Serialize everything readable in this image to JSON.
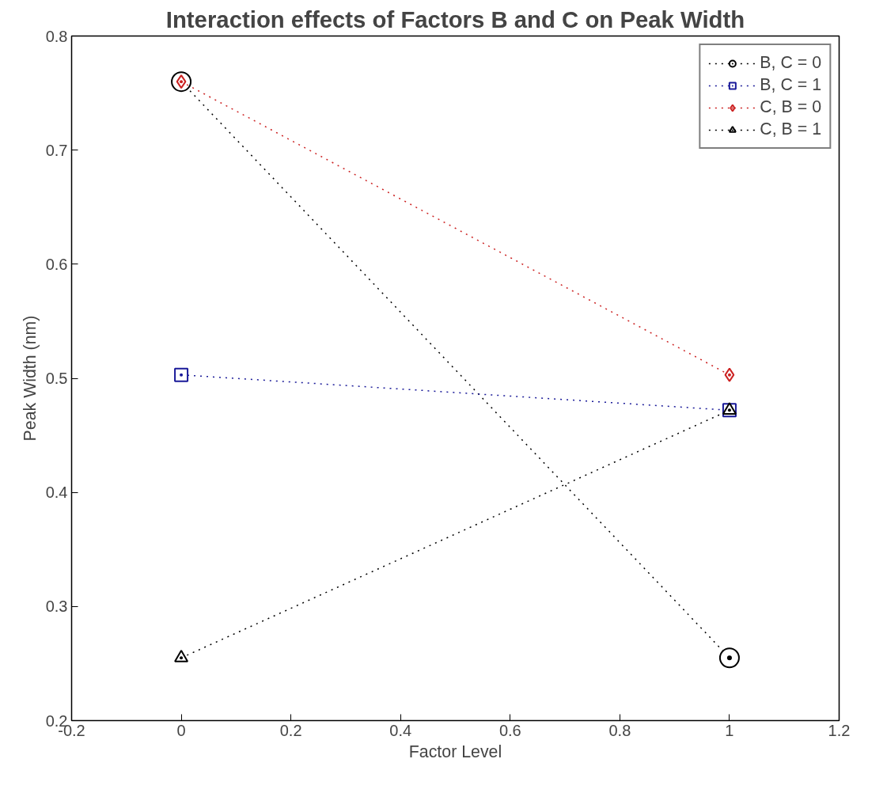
{
  "chart_data": {
    "type": "line",
    "title": "Interaction effects of Factors B and C on Peak Width",
    "xlabel": "Factor Level",
    "ylabel": "Peak Width (nm)",
    "x": [
      0,
      1
    ],
    "series": [
      {
        "name": "B, C = 0",
        "color": "#000000",
        "marker": "circle",
        "values": [
          0.76,
          0.255
        ]
      },
      {
        "name": "B, C = 1",
        "color": "#1a1a99",
        "marker": "square",
        "values": [
          0.503,
          0.472
        ]
      },
      {
        "name": "C, B = 0",
        "color": "#cc2222",
        "marker": "diamond",
        "values": [
          0.76,
          0.503
        ]
      },
      {
        "name": "C, B = 1",
        "color": "#000000",
        "marker": "triangle",
        "values": [
          0.255,
          0.472
        ]
      }
    ],
    "xlim": [
      -0.2,
      1.2
    ],
    "xticks": [
      -0.2,
      0,
      0.2,
      0.4,
      0.6,
      0.8,
      1,
      1.2
    ],
    "ylim": [
      0.2,
      0.8
    ],
    "yticks": [
      0.2,
      0.3,
      0.4,
      0.5,
      0.6,
      0.7,
      0.8
    ],
    "grid": false,
    "legend": "top right",
    "line_style": "dotted"
  }
}
